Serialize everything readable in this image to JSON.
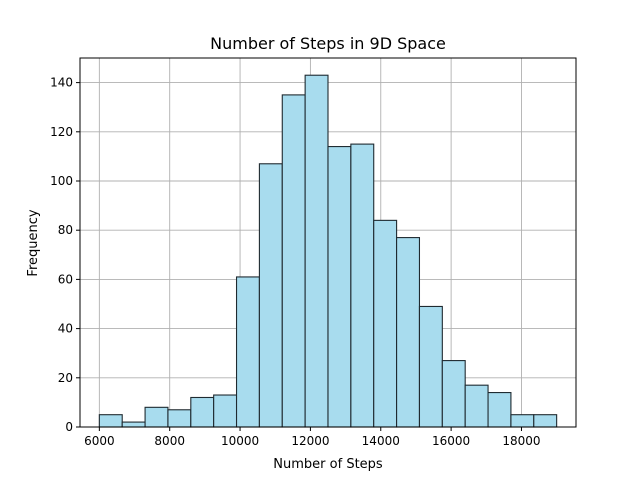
{
  "chart_data": {
    "type": "bar",
    "subtype": "histogram",
    "title": "Number of Steps in 9D Space",
    "xlabel": "Number of Steps",
    "ylabel": "Frequency",
    "bins": [
      {
        "start": 6000,
        "end": 6650,
        "count": 5
      },
      {
        "start": 6650,
        "end": 7300,
        "count": 2
      },
      {
        "start": 7300,
        "end": 7950,
        "count": 8
      },
      {
        "start": 7950,
        "end": 8600,
        "count": 7
      },
      {
        "start": 8600,
        "end": 9250,
        "count": 12
      },
      {
        "start": 9250,
        "end": 9900,
        "count": 13
      },
      {
        "start": 9900,
        "end": 10550,
        "count": 61
      },
      {
        "start": 10550,
        "end": 11200,
        "count": 107
      },
      {
        "start": 11200,
        "end": 11850,
        "count": 135
      },
      {
        "start": 11850,
        "end": 12500,
        "count": 143
      },
      {
        "start": 12500,
        "end": 13150,
        "count": 114
      },
      {
        "start": 13150,
        "end": 13800,
        "count": 115
      },
      {
        "start": 13800,
        "end": 14450,
        "count": 84
      },
      {
        "start": 14450,
        "end": 15100,
        "count": 77
      },
      {
        "start": 15100,
        "end": 15750,
        "count": 49
      },
      {
        "start": 15750,
        "end": 16400,
        "count": 27
      },
      {
        "start": 16400,
        "end": 17050,
        "count": 17
      },
      {
        "start": 17050,
        "end": 17700,
        "count": 14
      },
      {
        "start": 17700,
        "end": 18350,
        "count": 5
      },
      {
        "start": 18350,
        "end": 19000,
        "count": 5
      }
    ],
    "xlim": [
      5450,
      19550
    ],
    "ylim": [
      0,
      150
    ],
    "xticks": [
      6000,
      8000,
      10000,
      12000,
      14000,
      16000,
      18000
    ],
    "yticks": [
      0,
      20,
      40,
      60,
      80,
      100,
      120,
      140
    ],
    "grid": true,
    "colors": {
      "bar_fill": "#a8dcee",
      "bar_edge": "#1f2a30",
      "grid": "#b0b0b0",
      "axis": "#000000"
    }
  }
}
